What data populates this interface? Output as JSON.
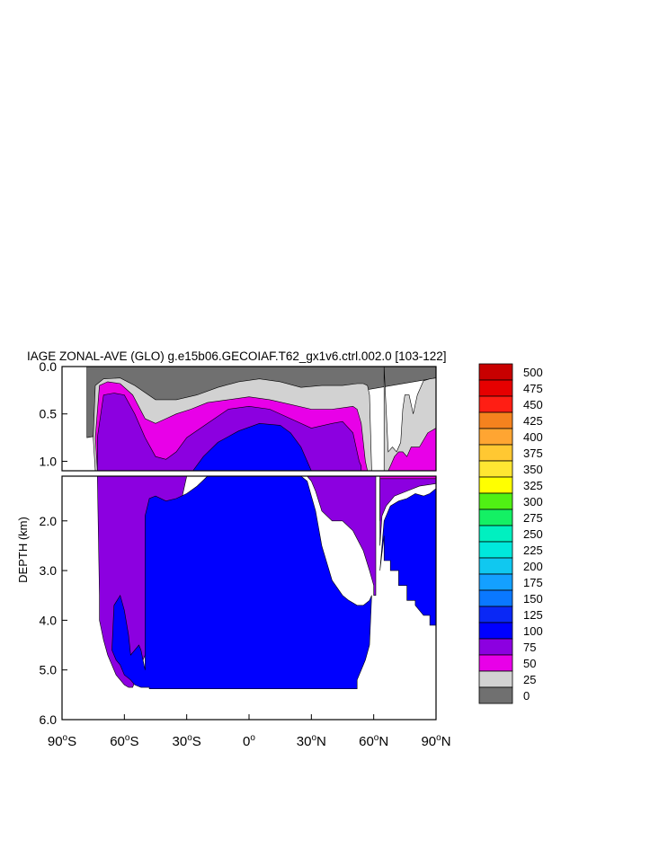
{
  "chart_data": {
    "type": "heatmap",
    "title": "IAGE ZONAL-AVE (GLO) g.e15b06.GECOIAF.T62_gx1v6.ctrl.002.0 [103-122]",
    "ylabel": "DEPTH (km)",
    "xlabel": "",
    "x_ticks": [
      {
        "value": -90,
        "num": "90",
        "hemi": "S"
      },
      {
        "value": -60,
        "num": "60",
        "hemi": "S"
      },
      {
        "value": -30,
        "num": "30",
        "hemi": "S"
      },
      {
        "value": 0,
        "num": "0",
        "hemi": ""
      },
      {
        "value": 30,
        "num": "30",
        "hemi": "N"
      },
      {
        "value": 60,
        "num": "60",
        "hemi": "N"
      },
      {
        "value": 90,
        "num": "90",
        "hemi": "N"
      }
    ],
    "upper_panel": {
      "ylim": [
        0.0,
        1.1
      ],
      "y_ticks": [
        {
          "value": 0.0,
          "label": "0.0"
        },
        {
          "value": 0.5,
          "label": "0.5"
        },
        {
          "value": 1.0,
          "label": "1.0"
        }
      ]
    },
    "lower_panel": {
      "ylim": [
        1.1,
        6.0
      ],
      "y_ticks": [
        {
          "value": 2.0,
          "label": "2.0"
        },
        {
          "value": 3.0,
          "label": "3.0"
        },
        {
          "value": 4.0,
          "label": "4.0"
        },
        {
          "value": 5.0,
          "label": "5.0"
        },
        {
          "value": 6.0,
          "label": "6.0"
        }
      ]
    },
    "levels": [
      "0",
      "25",
      "50",
      "75",
      "100",
      "125",
      "150",
      "175",
      "200",
      "225",
      "250",
      "275",
      "300",
      "325",
      "350",
      "375",
      "400",
      "425",
      "450",
      "475",
      "500"
    ],
    "colors": [
      "#707070",
      "#d2d2d2",
      "#e800e8",
      "#8c00e0",
      "#0000ff",
      "#0a28f5",
      "#0a78ff",
      "#14a0ff",
      "#10c8f0",
      "#00e8dc",
      "#00f0c0",
      "#14f064",
      "#50f014",
      "#ffff00",
      "#ffe632",
      "#ffc832",
      "#ffa532",
      "#f5821e",
      "#ff1e14",
      "#e60000",
      "#c80000"
    ],
    "regions": [
      {
        "level_index": 0,
        "x": [
          -78,
          -78,
          -75,
          -60,
          -40,
          -30,
          -20,
          -10,
          0,
          20,
          40,
          55,
          58,
          62,
          65,
          70,
          78,
          90,
          90,
          -78
        ],
        "y": [
          0.75,
          0.0,
          0.0,
          0.0,
          0.0,
          0.0,
          0.0,
          0.0,
          0.0,
          0.0,
          0.0,
          0.0,
          0.0,
          0.0,
          0.0,
          0.0,
          0.0,
          0.0,
          0.12,
          0.75
        ]
      },
      {
        "level_index": 1,
        "x": [
          -75,
          -74,
          -70,
          -62,
          -55,
          -45,
          -35,
          -25,
          -15,
          -5,
          5,
          15,
          25,
          35,
          45,
          52,
          55,
          57,
          58,
          59,
          60,
          61,
          62,
          62,
          61,
          60,
          59,
          58,
          57,
          56,
          55,
          54,
          53,
          52,
          51,
          50,
          45,
          40,
          30,
          20,
          10,
          0,
          -10,
          -20,
          -30,
          -40,
          -45,
          -50,
          -55,
          -60,
          -65,
          -70,
          -73,
          -74,
          -75
        ],
        "y": [
          0.75,
          0.2,
          0.13,
          0.12,
          0.2,
          0.35,
          0.35,
          0.3,
          0.22,
          0.16,
          0.13,
          0.16,
          0.22,
          0.2,
          0.2,
          0.18,
          0.18,
          0.2,
          0.3,
          1.1,
          1.1,
          1.1,
          1.1,
          1.1,
          1.1,
          1.1,
          1.1,
          1.1,
          1.1,
          1.1,
          1.1,
          1.1,
          1.1,
          1.1,
          1.1,
          1.1,
          1.1,
          1.1,
          1.1,
          1.1,
          1.1,
          1.1,
          1.1,
          1.1,
          1.1,
          1.1,
          1.1,
          1.1,
          1.1,
          1.1,
          1.1,
          1.1,
          1.1,
          1.1,
          0.75
        ]
      },
      {
        "level_index": 1,
        "x": [
          65,
          67,
          69,
          71,
          73,
          74,
          75,
          77,
          79,
          81,
          84,
          87,
          90,
          90,
          65
        ],
        "y": [
          0.0,
          0.9,
          0.85,
          0.9,
          0.8,
          0.45,
          0.3,
          0.3,
          0.5,
          0.3,
          0.15,
          0.13,
          0.12,
          1.1,
          1.1
        ]
      },
      {
        "level_index": 2,
        "x": [
          -74,
          -72,
          -68,
          -62,
          -56,
          -50,
          -45,
          -40,
          -35,
          -28,
          -20,
          -10,
          0,
          10,
          20,
          30,
          40,
          50,
          52,
          54,
          55,
          56,
          57,
          58,
          59,
          60,
          61,
          62,
          61,
          60,
          59,
          58,
          57,
          56,
          55,
          54,
          53,
          52,
          51,
          50,
          40,
          30,
          20,
          10,
          0,
          -10,
          -20,
          -30,
          -40,
          -50,
          -60,
          -70,
          -73,
          -74
        ],
        "y": [
          0.75,
          0.2,
          0.16,
          0.18,
          0.3,
          0.55,
          0.6,
          0.55,
          0.5,
          0.45,
          0.38,
          0.35,
          0.32,
          0.35,
          0.4,
          0.45,
          0.45,
          0.42,
          0.45,
          0.6,
          0.8,
          1.0,
          1.1,
          1.1,
          1.1,
          1.1,
          1.1,
          1.1,
          1.1,
          1.1,
          1.1,
          1.1,
          1.1,
          1.1,
          1.1,
          1.1,
          1.1,
          1.1,
          1.1,
          1.1,
          1.1,
          1.1,
          1.1,
          1.1,
          1.1,
          1.1,
          1.1,
          1.1,
          1.1,
          1.1,
          1.1,
          1.1,
          1.1,
          0.75
        ]
      },
      {
        "level_index": 2,
        "x": [
          67,
          68,
          70,
          72,
          74,
          76,
          78,
          82,
          86,
          90,
          90,
          67
        ],
        "y": [
          1.1,
          1.05,
          0.95,
          0.9,
          0.9,
          0.95,
          0.85,
          0.85,
          0.7,
          0.65,
          1.1,
          1.1
        ]
      },
      {
        "level_index": 3,
        "x": [
          -73,
          -70,
          -65,
          -60,
          -55,
          -50,
          -45,
          -40,
          -35,
          -30,
          -20,
          -10,
          0,
          10,
          20,
          30,
          40,
          45,
          50,
          52,
          53,
          54,
          54,
          -73
        ],
        "y": [
          0.75,
          0.3,
          0.28,
          0.3,
          0.5,
          0.75,
          0.95,
          0.98,
          0.9,
          0.75,
          0.6,
          0.45,
          0.42,
          0.45,
          0.55,
          0.65,
          0.6,
          0.58,
          0.7,
          0.9,
          1.0,
          1.05,
          1.1,
          1.1
        ]
      },
      {
        "level_index": 4,
        "x": [
          -27,
          -22,
          -15,
          -5,
          5,
          15,
          20,
          25,
          28,
          30,
          30,
          -27
        ],
        "y": [
          1.1,
          0.95,
          0.8,
          0.68,
          0.6,
          0.62,
          0.7,
          0.85,
          1.0,
          1.1,
          1.1,
          1.1
        ]
      }
    ],
    "lower_regions": [
      {
        "level_index": 2,
        "x": [
          63,
          66,
          70,
          75,
          80,
          85,
          90,
          90,
          63
        ],
        "y": [
          2.0,
          1.5,
          1.3,
          1.3,
          1.2,
          1.2,
          1.15,
          1.1,
          1.1
        ]
      },
      {
        "level_index": 3,
        "x": [
          -73,
          -72,
          -72,
          -71,
          -70,
          -68,
          -66,
          -64,
          -60,
          -58,
          -56,
          -53,
          -50,
          -48,
          -30,
          -25,
          -15,
          0,
          20,
          28,
          30,
          32,
          35,
          40,
          45,
          50,
          55,
          58,
          60,
          60,
          61,
          61,
          60,
          58,
          55,
          52,
          50,
          48,
          46,
          44,
          42,
          40,
          38,
          35,
          32,
          30,
          20,
          0,
          -20,
          -35,
          -38,
          -42,
          -45,
          -47,
          -48,
          -50,
          -52,
          -54,
          -56,
          -58,
          -60,
          -62,
          -64,
          -66,
          -68,
          -70,
          -72,
          -73
        ],
        "y": [
          1.1,
          3.5,
          4.0,
          4.2,
          4.4,
          4.7,
          4.9,
          5.1,
          5.3,
          5.35,
          5.35,
          5.0,
          4.7,
          4.5,
          1.1,
          1.1,
          1.1,
          1.1,
          1.1,
          1.1,
          1.2,
          1.4,
          1.8,
          2.0,
          2.0,
          2.2,
          2.6,
          3.0,
          3.3,
          3.5,
          3.5,
          1.1,
          1.1,
          1.1,
          1.1,
          1.1,
          1.1,
          1.1,
          1.1,
          1.1,
          1.1,
          1.1,
          1.1,
          1.1,
          1.1,
          1.1,
          1.1,
          1.1,
          1.1,
          1.1,
          1.1,
          1.1,
          1.1,
          1.1,
          1.1,
          1.1,
          1.1,
          1.1,
          1.1,
          1.1,
          1.1,
          1.1,
          1.1,
          1.1,
          1.1,
          1.1,
          1.1,
          1.1
        ]
      },
      {
        "level_index": 3,
        "x": [
          63,
          64,
          66,
          70,
          76,
          82,
          90,
          90,
          63
        ],
        "y": [
          2.5,
          1.9,
          1.7,
          1.5,
          1.4,
          1.3,
          1.25,
          1.15,
          1.15
        ]
      },
      {
        "level_index": 4,
        "x": [
          -66,
          -65,
          -62,
          -60,
          -58,
          -57,
          -55,
          -53,
          -52,
          -50,
          -50,
          -48,
          -45,
          -40,
          -35,
          -30,
          -25,
          -20,
          -10,
          0,
          10,
          20,
          25,
          28,
          30,
          32,
          35,
          40,
          45,
          48,
          50,
          52,
          55,
          58,
          59,
          58,
          56,
          54,
          52,
          52,
          52,
          -48,
          -48,
          -52,
          -55,
          -57,
          -60,
          -62,
          -64,
          -66
        ],
        "y": [
          4.6,
          3.7,
          3.5,
          3.8,
          4.3,
          4.7,
          4.6,
          4.5,
          4.6,
          5.0,
          1.9,
          1.55,
          1.5,
          1.6,
          1.55,
          1.45,
          1.3,
          1.1,
          1.1,
          1.1,
          1.1,
          1.1,
          1.1,
          1.2,
          1.5,
          1.8,
          2.5,
          3.2,
          3.5,
          3.6,
          3.65,
          3.7,
          3.7,
          3.6,
          3.5,
          4.5,
          4.8,
          5.0,
          5.2,
          5.35,
          5.38,
          5.38,
          5.35,
          5.35,
          5.3,
          5.2,
          5.1,
          4.9,
          4.8,
          4.6
        ]
      },
      {
        "level_index": 4,
        "x": [
          63,
          65,
          68,
          72,
          76,
          80,
          84,
          87,
          90,
          90,
          87,
          87,
          84,
          80,
          80,
          76,
          76,
          72,
          72,
          68,
          68,
          65,
          65,
          63
        ],
        "y": [
          3.0,
          2.0,
          1.7,
          1.6,
          1.55,
          1.45,
          1.5,
          1.45,
          1.35,
          4.1,
          4.1,
          3.9,
          3.9,
          3.7,
          3.6,
          3.6,
          3.3,
          3.3,
          3.0,
          3.0,
          2.8,
          2.8,
          2.3,
          3.0
        ]
      }
    ],
    "colorbar_labels": [
      "500",
      "475",
      "450",
      "425",
      "400",
      "375",
      "350",
      "325",
      "300",
      "275",
      "250",
      "225",
      "200",
      "175",
      "150",
      "125",
      "100",
      "75",
      "50",
      "25",
      "0"
    ]
  }
}
